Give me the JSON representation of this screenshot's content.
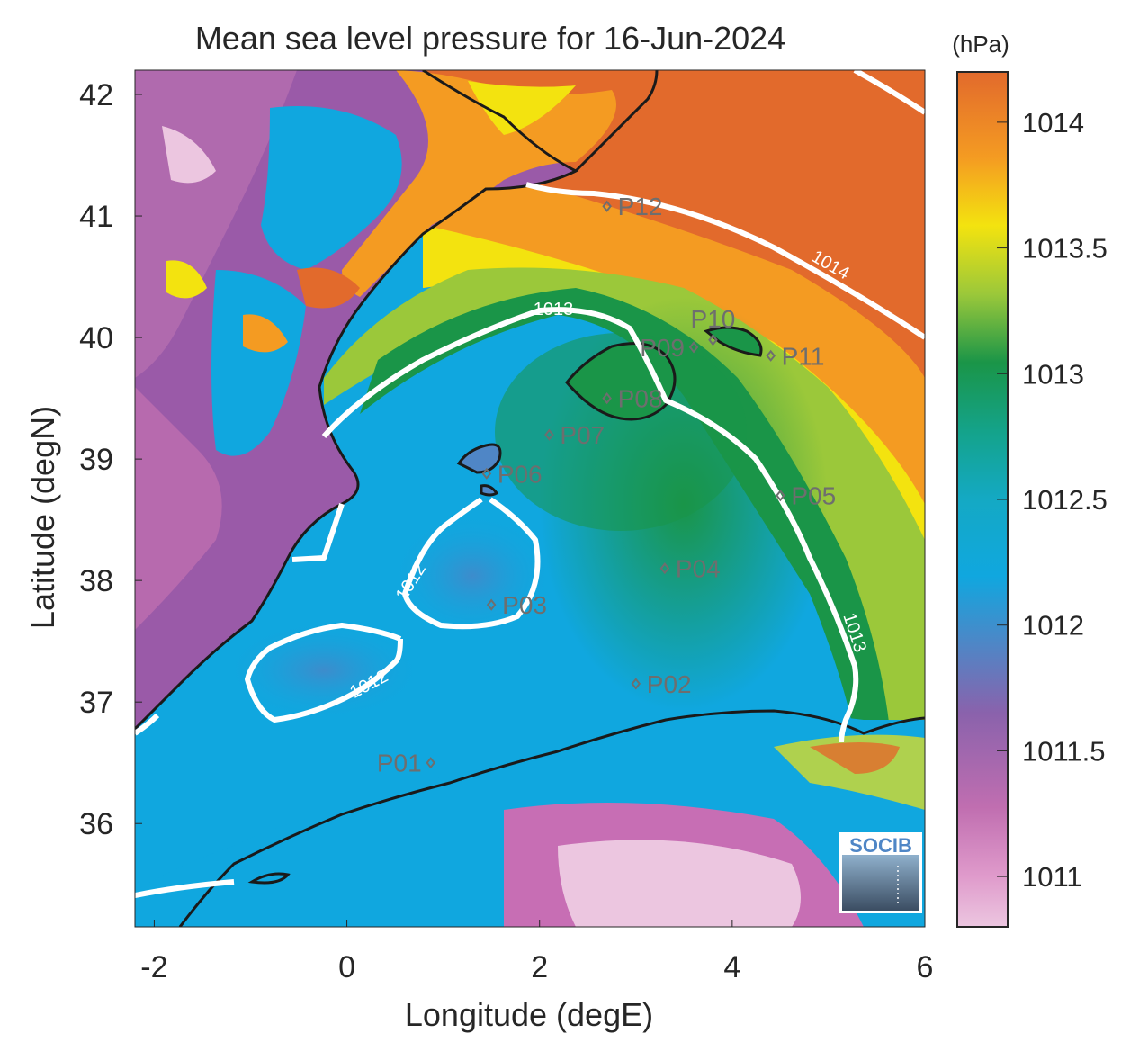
{
  "title": "Mean sea level pressure for 16-Jun-2024",
  "colorbar": {
    "unit": "(hPa)",
    "ticks": [
      "1014",
      "1013.5",
      "1013",
      "1012.5",
      "1012",
      "1011.5",
      "1011"
    ],
    "range": [
      1010.8,
      1014.2
    ]
  },
  "axes": {
    "xlabel": "Longitude (degE)",
    "ylabel": "Latitude (degN)",
    "xticks": [
      "-2",
      "0",
      "2",
      "4",
      "6"
    ],
    "yticks": [
      "42",
      "41",
      "40",
      "39",
      "38",
      "37",
      "36"
    ],
    "xlim": [
      -2.2,
      6.0
    ],
    "ylim": [
      35.15,
      42.2
    ]
  },
  "contour_labels": [
    "1013",
    "1014",
    "1012",
    "1012",
    "1013"
  ],
  "stations": [
    {
      "name": "P01",
      "lon": 0.87,
      "lat": 36.5
    },
    {
      "name": "P02",
      "lon": 3.0,
      "lat": 37.15
    },
    {
      "name": "P03",
      "lon": 1.5,
      "lat": 37.8
    },
    {
      "name": "P04",
      "lon": 3.3,
      "lat": 38.1
    },
    {
      "name": "P05",
      "lon": 4.5,
      "lat": 38.7
    },
    {
      "name": "P06",
      "lon": 1.45,
      "lat": 38.88
    },
    {
      "name": "P07",
      "lon": 2.1,
      "lat": 39.2
    },
    {
      "name": "P08",
      "lon": 2.7,
      "lat": 39.5
    },
    {
      "name": "P09",
      "lon": 3.6,
      "lat": 39.92
    },
    {
      "name": "P10",
      "lon": 3.8,
      "lat": 39.98
    },
    {
      "name": "P11",
      "lon": 4.4,
      "lat": 39.85
    },
    {
      "name": "P12",
      "lon": 2.7,
      "lat": 41.08
    }
  ],
  "logo": {
    "text": "SOCIB"
  },
  "colors": {
    "contour": "#ffffff",
    "coast": "#1a1a1a",
    "station": "#6e6e6e",
    "text": "#262626"
  }
}
